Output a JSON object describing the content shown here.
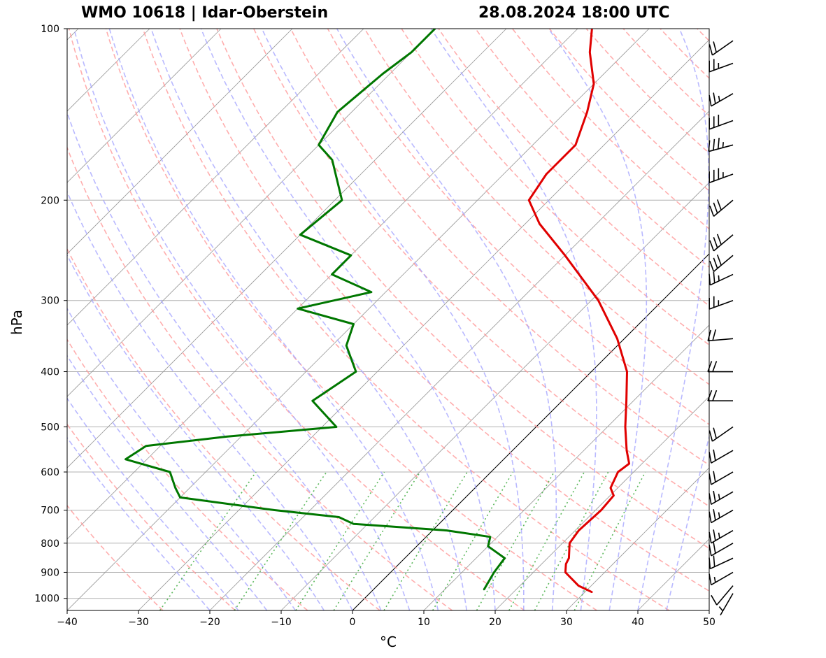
{
  "header": {
    "station": "WMO 10618 | Idar-Oberstein",
    "datetime": "28.08.2024 18:00 UTC"
  },
  "chart_data": {
    "type": "line",
    "kind": "skew-T log-p sounding",
    "xlabel": "°C",
    "ylabel": "hPa",
    "xlim": [
      -40,
      50
    ],
    "ylim": [
      1050,
      100
    ],
    "x_ticks": [
      -40,
      -30,
      -20,
      -10,
      0,
      10,
      20,
      30,
      40,
      50
    ],
    "y_ticks": [
      1000,
      900,
      800,
      700,
      600,
      500,
      400,
      300,
      200,
      100
    ],
    "grid": true,
    "reference_lines": {
      "dry_adiabats": "red dashed",
      "moist_adiabats": "blue dashed",
      "mixing_ratio_lines": "green dotted",
      "skewed_isotherms": "grey solid",
      "zero_isotherm": "black solid"
    },
    "colors": {
      "temperature": "#e00000",
      "dewpoint": "#007700"
    },
    "series": [
      {
        "name": "Temperature",
        "points": [
          {
            "p": 975,
            "t": 31.0
          },
          {
            "p": 950,
            "t": 28.2
          },
          {
            "p": 900,
            "t": 24.5
          },
          {
            "p": 870,
            "t": 23.4
          },
          {
            "p": 850,
            "t": 23.0
          },
          {
            "p": 800,
            "t": 21.0
          },
          {
            "p": 760,
            "t": 20.5
          },
          {
            "p": 700,
            "t": 20.8
          },
          {
            "p": 660,
            "t": 20.5
          },
          {
            "p": 640,
            "t": 19.0
          },
          {
            "p": 600,
            "t": 17.8
          },
          {
            "p": 580,
            "t": 18.2
          },
          {
            "p": 550,
            "t": 16.0
          },
          {
            "p": 500,
            "t": 12.5
          },
          {
            "p": 450,
            "t": 9.0
          },
          {
            "p": 400,
            "t": 5.0
          },
          {
            "p": 350,
            "t": -1.0
          },
          {
            "p": 300,
            "t": -9.0
          },
          {
            "p": 250,
            "t": -20.0
          },
          {
            "p": 220,
            "t": -28.0
          },
          {
            "p": 200,
            "t": -32.8
          },
          {
            "p": 180,
            "t": -34.0
          },
          {
            "p": 160,
            "t": -34.0
          },
          {
            "p": 140,
            "t": -37.0
          },
          {
            "p": 125,
            "t": -40.0
          },
          {
            "p": 110,
            "t": -45.0
          },
          {
            "p": 100,
            "t": -48.0
          }
        ]
      },
      {
        "name": "Dewpoint",
        "points": [
          {
            "p": 965,
            "t": 15.5
          },
          {
            "p": 900,
            "t": 14.5
          },
          {
            "p": 850,
            "t": 14.0
          },
          {
            "p": 810,
            "t": 10.0
          },
          {
            "p": 780,
            "t": 9.0
          },
          {
            "p": 760,
            "t": 2.0
          },
          {
            "p": 740,
            "t": -12.0
          },
          {
            "p": 720,
            "t": -15.0
          },
          {
            "p": 700,
            "t": -25.0
          },
          {
            "p": 665,
            "t": -40.0
          },
          {
            "p": 640,
            "t": -42.0
          },
          {
            "p": 600,
            "t": -45.0
          },
          {
            "p": 570,
            "t": -53.0
          },
          {
            "p": 540,
            "t": -52.0
          },
          {
            "p": 520,
            "t": -42.0
          },
          {
            "p": 500,
            "t": -28.0
          },
          {
            "p": 450,
            "t": -35.0
          },
          {
            "p": 400,
            "t": -33.0
          },
          {
            "p": 360,
            "t": -38.0
          },
          {
            "p": 330,
            "t": -40.0
          },
          {
            "p": 310,
            "t": -50.0
          },
          {
            "p": 290,
            "t": -42.0
          },
          {
            "p": 270,
            "t": -50.0
          },
          {
            "p": 250,
            "t": -50.0
          },
          {
            "p": 230,
            "t": -60.0
          },
          {
            "p": 200,
            "t": -59.0
          },
          {
            "p": 170,
            "t": -66.0
          },
          {
            "p": 160,
            "t": -70.0
          },
          {
            "p": 140,
            "t": -72.0
          },
          {
            "p": 120,
            "t": -71.0
          },
          {
            "p": 110,
            "t": -70.0
          },
          {
            "p": 100,
            "t": -70.0
          }
        ]
      }
    ],
    "wind_barbs": [
      {
        "p": 980,
        "speed_kt": 5,
        "dir_deg": 210
      },
      {
        "p": 950,
        "speed_kt": 10,
        "dir_deg": 220
      },
      {
        "p": 900,
        "speed_kt": 15,
        "dir_deg": 240
      },
      {
        "p": 850,
        "speed_kt": 20,
        "dir_deg": 245
      },
      {
        "p": 800,
        "speed_kt": 20,
        "dir_deg": 240
      },
      {
        "p": 760,
        "speed_kt": 25,
        "dir_deg": 240
      },
      {
        "p": 700,
        "speed_kt": 25,
        "dir_deg": 240
      },
      {
        "p": 650,
        "speed_kt": 25,
        "dir_deg": 240
      },
      {
        "p": 600,
        "speed_kt": 20,
        "dir_deg": 240
      },
      {
        "p": 550,
        "speed_kt": 20,
        "dir_deg": 240
      },
      {
        "p": 500,
        "speed_kt": 20,
        "dir_deg": 235
      },
      {
        "p": 450,
        "speed_kt": 20,
        "dir_deg": 270
      },
      {
        "p": 400,
        "speed_kt": 20,
        "dir_deg": 270
      },
      {
        "p": 350,
        "speed_kt": 20,
        "dir_deg": 265
      },
      {
        "p": 300,
        "speed_kt": 25,
        "dir_deg": 250
      },
      {
        "p": 270,
        "speed_kt": 25,
        "dir_deg": 245
      },
      {
        "p": 250,
        "speed_kt": 30,
        "dir_deg": 230
      },
      {
        "p": 230,
        "speed_kt": 30,
        "dir_deg": 230
      },
      {
        "p": 200,
        "speed_kt": 30,
        "dir_deg": 230
      },
      {
        "p": 180,
        "speed_kt": 35,
        "dir_deg": 250
      },
      {
        "p": 160,
        "speed_kt": 35,
        "dir_deg": 255
      },
      {
        "p": 145,
        "speed_kt": 30,
        "dir_deg": 250
      },
      {
        "p": 130,
        "speed_kt": 25,
        "dir_deg": 240
      },
      {
        "p": 115,
        "speed_kt": 25,
        "dir_deg": 250
      },
      {
        "p": 105,
        "speed_kt": 20,
        "dir_deg": 235
      }
    ]
  }
}
